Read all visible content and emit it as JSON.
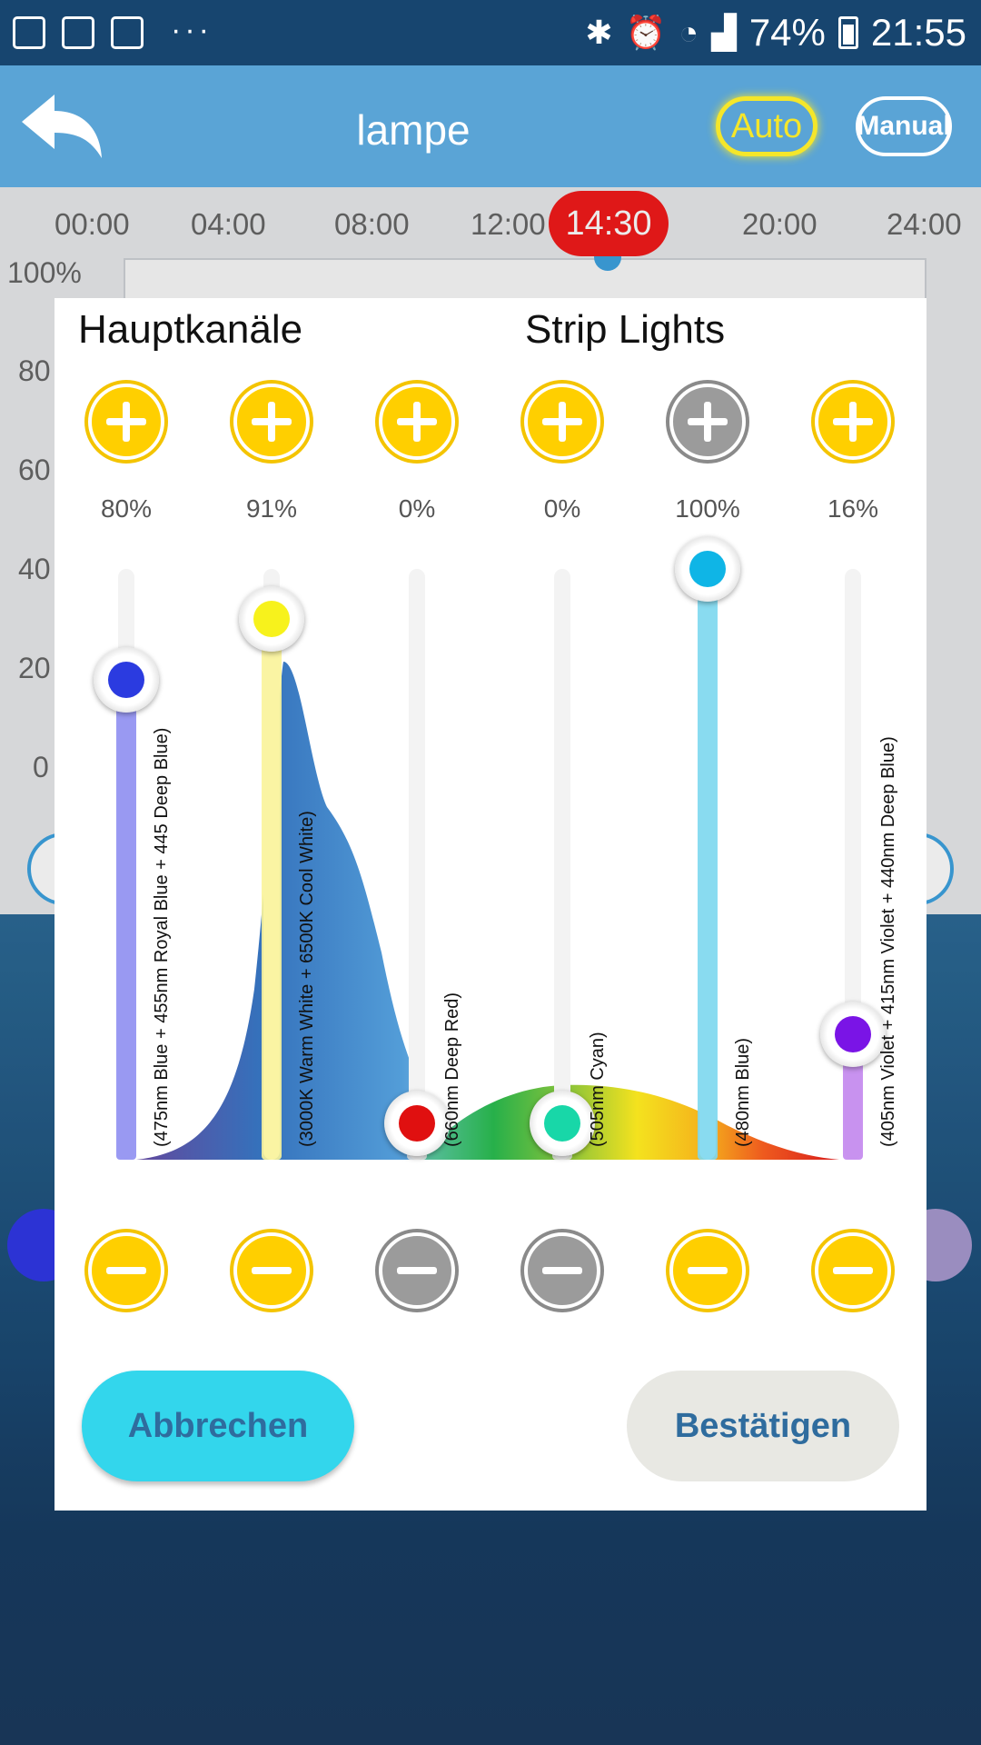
{
  "status_bar": {
    "left_icons": [
      "image-icon",
      "calendar-icon",
      "folder-icon"
    ],
    "overflow": "···",
    "battery": "74%",
    "time": "21:55"
  },
  "app_bar": {
    "title": "lampe",
    "auto_label": "Auto",
    "manual_label": "Manual",
    "auto_color": "#f5e62a"
  },
  "background_chart": {
    "time_ticks": [
      "00:00",
      "04:00",
      "08:00",
      "12:00",
      "20:00",
      "24:00"
    ],
    "y_ticks": [
      "100%",
      "80",
      "60",
      "40",
      "20",
      "0"
    ],
    "current_time": "14:30"
  },
  "dialog": {
    "heading_left": "Hauptkanäle",
    "heading_right": "Strip Lights",
    "channels": [
      {
        "percent": "80%",
        "level": 0.8,
        "color": "#2b3be0",
        "track": "#8f8ff2",
        "label": "(475nm Blue + 455nm Royal Blue + 445 Deep Blue)",
        "plus_enabled": true,
        "minus_enabled": true
      },
      {
        "percent": "91%",
        "level": 0.91,
        "color": "#f7f21c",
        "track": "#fbf49a",
        "label": "(3000K Warm White + 6500K Cool White)",
        "plus_enabled": true,
        "minus_enabled": true
      },
      {
        "percent": "0%",
        "level": 0.0,
        "color": "#e01010",
        "track": "#ececec",
        "label": "(660nm Deep Red)",
        "plus_enabled": true,
        "minus_enabled": false
      },
      {
        "percent": "0%",
        "level": 0.0,
        "color": "#18d7a8",
        "track": "#ececec",
        "label": "(505nm Cyan)",
        "plus_enabled": true,
        "minus_enabled": false
      },
      {
        "percent": "100%",
        "level": 1.0,
        "color": "#0fb5e6",
        "track": "#7dd8ef",
        "label": "(480nm Blue)",
        "plus_enabled": false,
        "minus_enabled": true
      },
      {
        "percent": "16%",
        "level": 0.16,
        "color": "#7a14e6",
        "track": "#c387ee",
        "label": "(405nm Violet + 415nm Violet + 440nm Deep Blue)",
        "plus_enabled": true,
        "minus_enabled": true
      }
    ],
    "cancel_label": "Abbrechen",
    "confirm_label": "Bestätigen"
  }
}
